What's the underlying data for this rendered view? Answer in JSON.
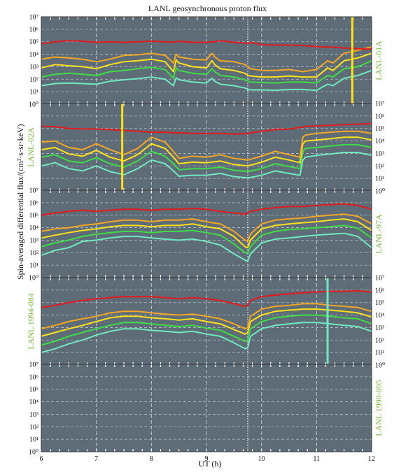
{
  "figure": {
    "title": "LANL geosynchronous proton flux",
    "ylabel": "Spin-averaged differential flux/(cm²·s·sr·keV)",
    "xlabel": "UT (h)"
  },
  "chart_data": {
    "type": "line",
    "x_range": [
      6,
      12
    ],
    "x_ticks": [
      "6",
      "7",
      "8",
      "9",
      "10",
      "11",
      "12"
    ],
    "y_scale": "log",
    "y_range": [
      1,
      10000000
    ],
    "y_tick_labels": [
      "10⁰",
      "10¹",
      "10²",
      "10³",
      "10⁴",
      "10⁵",
      "10⁶",
      "10⁷"
    ],
    "grid": true,
    "background": "#5e6c78",
    "grid_color": "#d8dde2",
    "marker_line_x": 9.75,
    "series_colors": [
      "#e31a1c",
      "#f5a623",
      "#ffe01a",
      "#3edc45",
      "#70e8c0"
    ],
    "panels": [
      {
        "label": "LANL-01A",
        "label_side": "right",
        "x": [
          6.0,
          6.25,
          6.5,
          6.75,
          7.0,
          7.25,
          7.5,
          7.75,
          8.0,
          8.25,
          8.4,
          8.45,
          8.5,
          8.75,
          9.0,
          9.1,
          9.15,
          9.25,
          9.5,
          9.7,
          9.75,
          9.8,
          10.0,
          10.25,
          10.5,
          10.75,
          11.0,
          11.2,
          11.3,
          11.5,
          11.75,
          12.0
        ],
        "series": [
          {
            "values": [
              70000,
              100000,
              120000,
              110000,
              90000,
              100000,
              90000,
              100000,
              110000,
              100000,
              90000,
              100000,
              110000,
              90000,
              90000,
              100000,
              100000,
              120000,
              90000,
              80000,
              70000,
              90000,
              60000,
              55000,
              55000,
              50000,
              40000,
              38000,
              36000,
              32000,
              28000,
              25000
            ]
          },
          {
            "values": [
              4000,
              6000,
              5000,
              4000,
              2500,
              4000,
              8000,
              9000,
              12000,
              8000,
              2000,
              10000,
              6000,
              4000,
              3500,
              12000,
              6000,
              3000,
              2500,
              1500,
              1000,
              700,
              500,
              500,
              600,
              400,
              600,
              3000,
              2000,
              12000,
              20000,
              40000
            ]
          },
          {
            "values": [
              800,
              1500,
              1200,
              1000,
              700,
              1500,
              2500,
              3000,
              4000,
              2500,
              400,
              3500,
              2000,
              1000,
              800,
              3000,
              1500,
              700,
              500,
              300,
              200,
              180,
              150,
              150,
              180,
              150,
              150,
              800,
              500,
              3000,
              5000,
              12000
            ]
          },
          {
            "values": [
              150,
              250,
              300,
              250,
              200,
              400,
              500,
              700,
              900,
              600,
              120,
              800,
              500,
              300,
              250,
              700,
              400,
              200,
              150,
              90,
              70,
              60,
              55,
              50,
              60,
              60,
              50,
              200,
              150,
              700,
              1000,
              3000
            ]
          },
          {
            "values": [
              30,
              45,
              50,
              45,
              40,
              70,
              90,
              110,
              150,
              100,
              30,
              130,
              90,
              60,
              50,
              120,
              70,
              40,
              30,
              20,
              15,
              14,
              14,
              13,
              15,
              15,
              13,
              40,
              30,
              120,
              200,
              500
            ]
          }
        ]
      },
      {
        "label": "LANL-02A",
        "label_side": "left",
        "x": [
          6.0,
          6.25,
          6.5,
          6.75,
          7.0,
          7.25,
          7.5,
          7.75,
          8.0,
          8.25,
          8.4,
          8.5,
          8.75,
          9.0,
          9.25,
          9.5,
          9.75,
          10.0,
          10.25,
          10.5,
          10.7,
          10.75,
          10.8,
          11.0,
          11.25,
          11.5,
          11.75,
          12.0
        ],
        "series": [
          {
            "values": [
              150000,
              140000,
              100000,
              90000,
              90000,
              80000,
              70000,
              60000,
              50000,
              50000,
              45000,
              45000,
              40000,
              40000,
              40000,
              35000,
              40000,
              60000,
              80000,
              90000,
              120000,
              130000,
              150000,
              160000,
              180000,
              200000,
              220000,
              250000
            ]
          },
          {
            "values": [
              8000,
              10000,
              3000,
              2000,
              6000,
              2000,
              800,
              2500,
              20000,
              8000,
              1500,
              400,
              600,
              500,
              800,
              400,
              300,
              600,
              1500,
              800,
              500,
              20000,
              30000,
              40000,
              50000,
              60000,
              60000,
              40000
            ]
          },
          {
            "values": [
              2000,
              3000,
              900,
              600,
              1800,
              500,
              250,
              800,
              6000,
              2500,
              500,
              150,
              200,
              180,
              250,
              130,
              100,
              200,
              500,
              300,
              180,
              6000,
              10000,
              12000,
              15000,
              20000,
              20000,
              12000
            ]
          },
          {
            "values": [
              500,
              800,
              250,
              180,
              450,
              150,
              80,
              250,
              1500,
              600,
              150,
              50,
              60,
              60,
              80,
              45,
              35,
              60,
              150,
              90,
              60,
              1500,
              2500,
              3000,
              4000,
              5000,
              5000,
              3000
            ]
          },
          {
            "values": [
              100,
              180,
              60,
              40,
              100,
              35,
              20,
              60,
              300,
              150,
              40,
              15,
              18,
              18,
              25,
              14,
              11,
              18,
              40,
              25,
              18,
              300,
              500,
              700,
              900,
              1200,
              1200,
              700
            ]
          }
        ]
      },
      {
        "label": "LANL-97A",
        "label_side": "right",
        "x": [
          6.0,
          6.25,
          6.5,
          6.75,
          7.0,
          7.25,
          7.5,
          7.75,
          8.0,
          8.25,
          8.5,
          8.75,
          9.0,
          9.25,
          9.5,
          9.7,
          9.75,
          9.8,
          10.0,
          10.25,
          10.5,
          10.75,
          11.0,
          11.25,
          11.5,
          11.75,
          12.0
        ],
        "series": [
          {
            "values": [
              100000,
              150000,
              200000,
              250000,
              200000,
              250000,
              300000,
              300000,
              250000,
              300000,
              300000,
              350000,
              300000,
              200000,
              150000,
              120000,
              150000,
              200000,
              300000,
              400000,
              500000,
              500000,
              600000,
              700000,
              800000,
              600000,
              300000
            ]
          },
          {
            "values": [
              5000,
              8000,
              10000,
              15000,
              20000,
              30000,
              40000,
              40000,
              30000,
              40000,
              40000,
              50000,
              30000,
              20000,
              5000,
              1000,
              800,
              3000,
              20000,
              40000,
              50000,
              60000,
              80000,
              100000,
              120000,
              80000,
              20000
            ]
          },
          {
            "values": [
              1500,
              2500,
              4000,
              6000,
              8000,
              12000,
              15000,
              15000,
              12000,
              15000,
              15000,
              20000,
              12000,
              8000,
              2000,
              300,
              250,
              1000,
              8000,
              15000,
              20000,
              25000,
              30000,
              40000,
              50000,
              30000,
              6000
            ]
          },
          {
            "values": [
              300,
              600,
              1000,
              2000,
              3000,
              4000,
              5000,
              5000,
              4000,
              5000,
              5000,
              6000,
              4000,
              2500,
              500,
              100,
              90,
              300,
              2500,
              5000,
              7000,
              8000,
              10000,
              12000,
              15000,
              9000,
              1500
            ]
          },
          {
            "values": [
              60,
              150,
              250,
              800,
              1000,
              1500,
              2000,
              2000,
              1500,
              1200,
              1000,
              1200,
              800,
              400,
              80,
              25,
              20,
              80,
              600,
              1200,
              1500,
              2000,
              2500,
              3000,
              3500,
              2000,
              250
            ]
          }
        ]
      },
      {
        "label": "LANL 1994-084",
        "label_side": "left",
        "x": [
          6.0,
          6.25,
          6.5,
          6.75,
          7.0,
          7.25,
          7.5,
          7.75,
          8.0,
          8.25,
          8.5,
          8.75,
          9.0,
          9.25,
          9.5,
          9.7,
          9.75,
          9.8,
          10.0,
          10.25,
          10.5,
          10.75,
          11.0,
          11.25,
          11.5,
          11.75,
          12.0
        ],
        "series": [
          {
            "values": [
              40000,
              60000,
              100000,
              150000,
              200000,
              250000,
              300000,
              300000,
              300000,
              250000,
              200000,
              250000,
              200000,
              150000,
              80000,
              50000,
              60000,
              150000,
              300000,
              400000,
              500000,
              600000,
              700000,
              800000,
              800000,
              900000,
              700000
            ]
          },
          {
            "values": [
              800,
              1500,
              3000,
              5000,
              8000,
              15000,
              20000,
              20000,
              15000,
              12000,
              10000,
              12000,
              8000,
              5000,
              2000,
              800,
              1000,
              8000,
              30000,
              50000,
              60000,
              80000,
              80000,
              60000,
              50000,
              40000,
              20000
            ]
          },
          {
            "values": [
              200,
              400,
              800,
              1500,
              3000,
              6000,
              8000,
              8000,
              6000,
              5000,
              4000,
              5000,
              3000,
              2000,
              700,
              300,
              400,
              3000,
              10000,
              20000,
              25000,
              30000,
              30000,
              25000,
              20000,
              15000,
              7000
            ]
          },
          {
            "values": [
              40,
              80,
              200,
              400,
              800,
              1500,
              2500,
              2500,
              2000,
              1500,
              1200,
              1500,
              900,
              600,
              200,
              80,
              100,
              800,
              3000,
              6000,
              8000,
              10000,
              10000,
              8000,
              6000,
              5000,
              2000
            ]
          },
          {
            "values": [
              10,
              20,
              50,
              100,
              250,
              500,
              800,
              800,
              600,
              500,
              400,
              500,
              300,
              200,
              60,
              20,
              25,
              200,
              800,
              1500,
              2000,
              2500,
              2500,
              2000,
              1500,
              1200,
              500
            ]
          }
        ]
      },
      {
        "label": "LANL 1990-095",
        "label_side": "right",
        "x": [],
        "series": []
      }
    ],
    "spikes": [
      {
        "panel": 0,
        "x": 11.65,
        "color": "#ffe01a"
      },
      {
        "panel": 1,
        "x": 7.47,
        "color": "#ffe01a"
      },
      {
        "panel": 3,
        "x": 11.2,
        "color": "#70e8c0"
      }
    ]
  }
}
